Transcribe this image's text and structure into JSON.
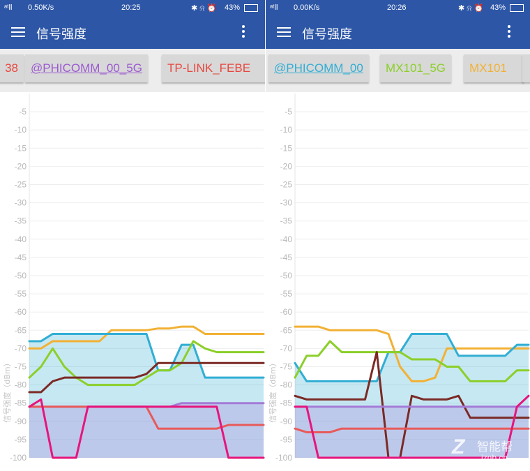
{
  "panels": [
    {
      "status": {
        "signal": "ᵃᵗll",
        "speed": "0.50K/s",
        "time": "20:25",
        "battery": "43%"
      },
      "app_title": "信号强度",
      "tabs": [
        {
          "label": "38",
          "color": "#e8473f",
          "underline": false
        },
        {
          "label": "@PHICOMM_00_5G",
          "color": "#9b59d0",
          "underline": true
        },
        {
          "label": "TP-LINK_FEBE",
          "color": "#e8473f",
          "underline": false
        }
      ],
      "chart_data": {
        "type": "line",
        "ylabel": "信号强度（dBm）",
        "ylim": [
          -100,
          0
        ],
        "yticks": [
          "-5",
          "-10",
          "-15",
          "-20",
          "-25",
          "-30",
          "-35",
          "-40",
          "-45",
          "-50",
          "-55",
          "-60",
          "-65",
          "-70",
          "-75",
          "-80",
          "-85",
          "-90",
          "-95",
          "-100"
        ],
        "x": [
          0,
          1,
          2,
          3,
          4,
          5,
          6,
          7,
          8,
          9,
          10,
          11,
          12,
          13,
          14,
          15,
          16,
          17,
          18,
          19,
          20
        ],
        "series": [
          {
            "color": "#f2b134",
            "fill": false,
            "values": [
              -70,
              -70,
              -68,
              -68,
              -68,
              -68,
              -68,
              -65,
              -65,
              -65,
              -65,
              -64.5,
              -64.5,
              -64,
              -64,
              -66,
              -66,
              -66,
              -66,
              -66,
              -66
            ]
          },
          {
            "color": "#31aed4",
            "fill": true,
            "values": [
              -68,
              -68,
              -66,
              -66,
              -66,
              -66,
              -66,
              -66,
              -66,
              -66,
              -66,
              -76,
              -76,
              -69,
              -69,
              -78,
              -78,
              -78,
              -78,
              -78,
              -78
            ]
          },
          {
            "color": "#8ccf2a",
            "fill": false,
            "values": [
              -78,
              -75,
              -70,
              -75,
              -78,
              -80,
              -80,
              -80,
              -80,
              -80,
              -78,
              -76,
              -76,
              -74,
              -68,
              -70,
              -71,
              -71,
              -71,
              -71,
              -71
            ]
          },
          {
            "color": "#7b2a25",
            "fill": false,
            "values": [
              -82,
              -82,
              -79,
              -78,
              -78,
              -78,
              -78,
              -78,
              -78,
              -78,
              -77,
              -74,
              -74,
              -74,
              -74,
              -74,
              -74,
              -74,
              -74,
              -74,
              -74
            ]
          },
          {
            "color": "#a47bd6",
            "fill": true,
            "values": [
              -86,
              -86,
              -86,
              -86,
              -86,
              -86,
              -86,
              -86,
              -86,
              -86,
              -86,
              -86,
              -86,
              -85,
              -85,
              -85,
              -85,
              -85,
              -85,
              -85,
              -85
            ]
          },
          {
            "color": "#e85a5a",
            "fill": false,
            "values": [
              -86,
              -86,
              -86,
              -86,
              -86,
              -86,
              -86,
              -86,
              -86,
              -86,
              -86,
              -92,
              -92,
              -92,
              -92,
              -92,
              -92,
              -91,
              -91,
              -91,
              -91
            ]
          },
          {
            "color": "#e6157c",
            "fill": false,
            "values": [
              -86,
              -84,
              -100,
              -100,
              -100,
              -86,
              -86,
              -86,
              -86,
              -86,
              -86,
              -86,
              -86,
              -86,
              -86,
              -86,
              -86,
              -100,
              -100,
              -100,
              -100
            ]
          }
        ]
      }
    },
    {
      "status": {
        "signal": "ᵃᵗll",
        "speed": "0.00K/s",
        "time": "20:26",
        "battery": "43%"
      },
      "app_title": "信号强度",
      "tabs": [
        {
          "label": "@PHICOMM_00",
          "color": "#31aed4",
          "underline": true
        },
        {
          "label": "MX101_5G",
          "color": "#8ccf2a",
          "underline": false
        },
        {
          "label": "MX101",
          "color": "#f2b134",
          "underline": false
        }
      ],
      "chart_data": {
        "type": "line",
        "ylabel": "信号强度（dBm）",
        "ylim": [
          -100,
          0
        ],
        "yticks": [
          "-5",
          "-10",
          "-15",
          "-20",
          "-25",
          "-30",
          "-35",
          "-40",
          "-45",
          "-50",
          "-55",
          "-60",
          "-65",
          "-70",
          "-75",
          "-80",
          "-85",
          "-90",
          "-95",
          "-100"
        ],
        "x": [
          0,
          1,
          2,
          3,
          4,
          5,
          6,
          7,
          8,
          9,
          10,
          11,
          12,
          13,
          14,
          15,
          16,
          17,
          18,
          19,
          20
        ],
        "series": [
          {
            "color": "#f2b134",
            "fill": false,
            "values": [
              -64,
              -64,
              -64,
              -65,
              -65,
              -65,
              -65,
              -65,
              -66,
              -75,
              -79,
              -79,
              -78,
              -70,
              -70,
              -70,
              -70,
              -70,
              -70,
              -70,
              -70
            ]
          },
          {
            "color": "#31aed4",
            "fill": true,
            "values": [
              -74,
              -79,
              -79,
              -79,
              -79,
              -79,
              -79,
              -79,
              -71,
              -71,
              -66,
              -66,
              -66,
              -66,
              -72,
              -72,
              -72,
              -72,
              -72,
              -69,
              -69
            ]
          },
          {
            "color": "#8ccf2a",
            "fill": false,
            "values": [
              -78,
              -72,
              -72,
              -68,
              -71,
              -71,
              -71,
              -71,
              -71,
              -71,
              -73,
              -73,
              -73,
              -75,
              -75,
              -79,
              -79,
              -79,
              -79,
              -76,
              -76
            ]
          },
          {
            "color": "#7b2a25",
            "fill": false,
            "values": [
              -83,
              -84,
              -84,
              -84,
              -84,
              -84,
              -84,
              -71,
              -100,
              -100,
              -83,
              -84,
              -84,
              -84,
              -83,
              -89,
              -89,
              -89,
              -89,
              -89,
              -89
            ]
          },
          {
            "color": "#a47bd6",
            "fill": true,
            "values": [
              -86,
              -86,
              -86,
              -86,
              -86,
              -86,
              -86,
              -86,
              -86,
              -86,
              -86,
              -86,
              -86,
              -86,
              -86,
              -86,
              -86,
              -86,
              -86,
              -86,
              -86
            ]
          },
          {
            "color": "#e85a5a",
            "fill": false,
            "values": [
              -92,
              -93,
              -93,
              -93,
              -92,
              -92,
              -92,
              -92,
              -92,
              -92,
              -92,
              -92,
              -92,
              -92,
              -92,
              -92,
              -92,
              -92,
              -92,
              -92,
              -92
            ]
          },
          {
            "color": "#e6157c",
            "fill": false,
            "values": [
              -86,
              -86,
              -100,
              -100,
              -100,
              -100,
              -100,
              -100,
              -100,
              -100,
              -100,
              -100,
              -100,
              -100,
              -100,
              -100,
              -100,
              -100,
              -100,
              -86,
              -83
            ]
          }
        ]
      }
    }
  ],
  "watermark": {
    "mark": "Z",
    "cn": "智能帮",
    "url": "iznb.cn"
  }
}
